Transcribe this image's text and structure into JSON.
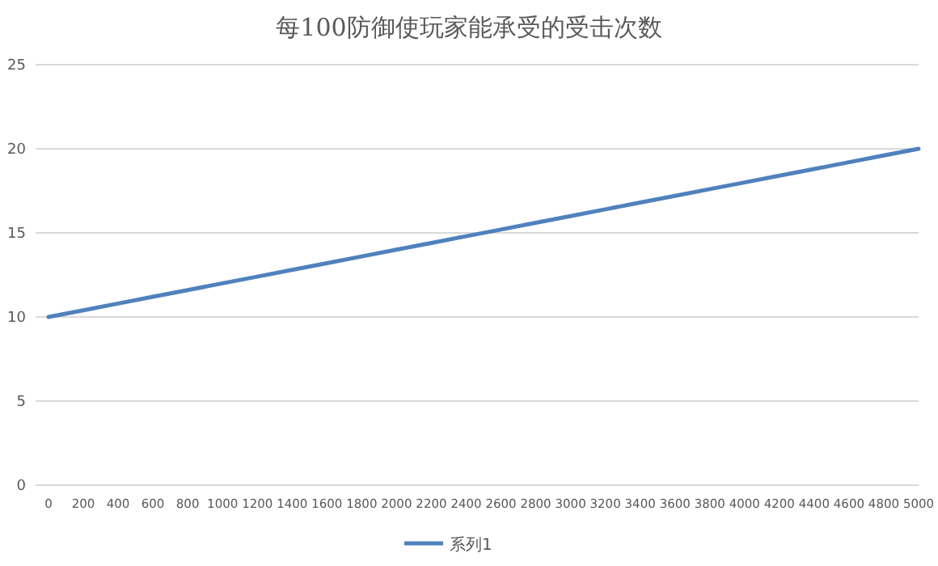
{
  "chart_data": {
    "type": "line",
    "title": "每100防御使玩家能承受的受击次数",
    "categories": [
      "0",
      "200",
      "400",
      "600",
      "800",
      "1000",
      "1200",
      "1400",
      "1600",
      "1800",
      "2000",
      "2200",
      "2400",
      "2600",
      "2800",
      "3000",
      "3200",
      "3400",
      "3600",
      "3800",
      "4000",
      "4200",
      "4400",
      "4600",
      "4800",
      "5000"
    ],
    "series": [
      {
        "name": "系列1",
        "color": "#4f81bd",
        "values": [
          10,
          10.4,
          10.8,
          11.2,
          11.6,
          12,
          12.4,
          12.8,
          13.2,
          13.6,
          14,
          14.4,
          14.8,
          15.2,
          15.6,
          16,
          16.4,
          16.8,
          17.2,
          17.6,
          18,
          18.4,
          18.8,
          19.2,
          19.6,
          20
        ]
      }
    ],
    "ylim": [
      0,
      25
    ],
    "yticks": [
      0,
      5,
      10,
      15,
      20,
      25
    ],
    "grid": "y",
    "legend": "bottom",
    "marker": "none",
    "line_style": "solid"
  }
}
